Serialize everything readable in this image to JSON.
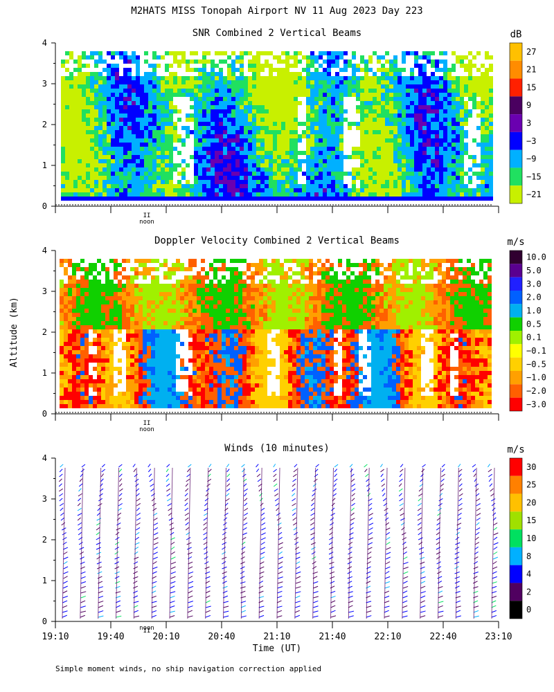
{
  "figure": {
    "title": "M2HATS MISS Tonopah Airport NV  11 Aug 2023 Day 223",
    "ylabel": "Altitude (km)",
    "xlabel": "Time (UT)",
    "footnote": "Simple moment winds, no ship navigation correction applied",
    "x_ticks": [
      "19:10",
      "19:40",
      "20:10",
      "20:40",
      "21:10",
      "21:40",
      "22:10",
      "22:40",
      "23:10"
    ],
    "noon_label": "noon",
    "noon_marker": "II"
  },
  "chart_data": [
    {
      "type": "heatmap",
      "title": "SNR Combined 2 Vertical Beams",
      "units": "dB",
      "ylim": [
        0,
        4
      ],
      "y_ticks": [
        0,
        1,
        2,
        3,
        4
      ],
      "x_range": [
        "19:10",
        "23:10"
      ],
      "colorbar": {
        "labels": [
          "27",
          "21",
          "15",
          "9",
          "3",
          "−3",
          "−9",
          "−15",
          "−21"
        ],
        "colors": [
          "#ffc000",
          "#ff8c00",
          "#ff2000",
          "#4a0060",
          "#6a00b0",
          "#0000ff",
          "#00b0ff",
          "#20e060",
          "#c8f000"
        ]
      },
      "description_values": {
        "typical_low": -21,
        "typical_high": 3
      }
    },
    {
      "type": "heatmap",
      "title": "Doppler Velocity Combined 2 Vertical Beams",
      "units": "m/s",
      "ylim": [
        0,
        4
      ],
      "y_ticks": [
        0,
        1,
        2,
        3,
        4
      ],
      "x_range": [
        "19:10",
        "23:10"
      ],
      "colorbar": {
        "labels": [
          "10.0",
          "5.0",
          "3.0",
          "2.0",
          "1.0",
          "0.5",
          "0.1",
          "−0.1",
          "−0.5",
          "−1.0",
          "−2.0",
          "−3.0"
        ],
        "colors": [
          "#300030",
          "#5a0090",
          "#2020ff",
          "#0060ff",
          "#00b0f0",
          "#10d000",
          "#a0f000",
          "#ffff00",
          "#ffd000",
          "#ffa000",
          "#ff6000",
          "#ff0000"
        ]
      }
    },
    {
      "type": "wind_barbs",
      "title": "Winds (10 minutes)",
      "units": "m/s",
      "ylim": [
        0,
        4
      ],
      "y_ticks": [
        0,
        1,
        2,
        3,
        4
      ],
      "x_range": [
        "19:10",
        "23:10"
      ],
      "interval_minutes": 10,
      "colorbar": {
        "labels": [
          "30",
          "25",
          "20",
          "15",
          "10",
          "8",
          "4",
          "2",
          "0"
        ],
        "colors": [
          "#ff0000",
          "#ff8000",
          "#ffc000",
          "#a0e000",
          "#00e060",
          "#00b0ff",
          "#0000ff",
          "#500060",
          "#000000"
        ]
      }
    }
  ]
}
